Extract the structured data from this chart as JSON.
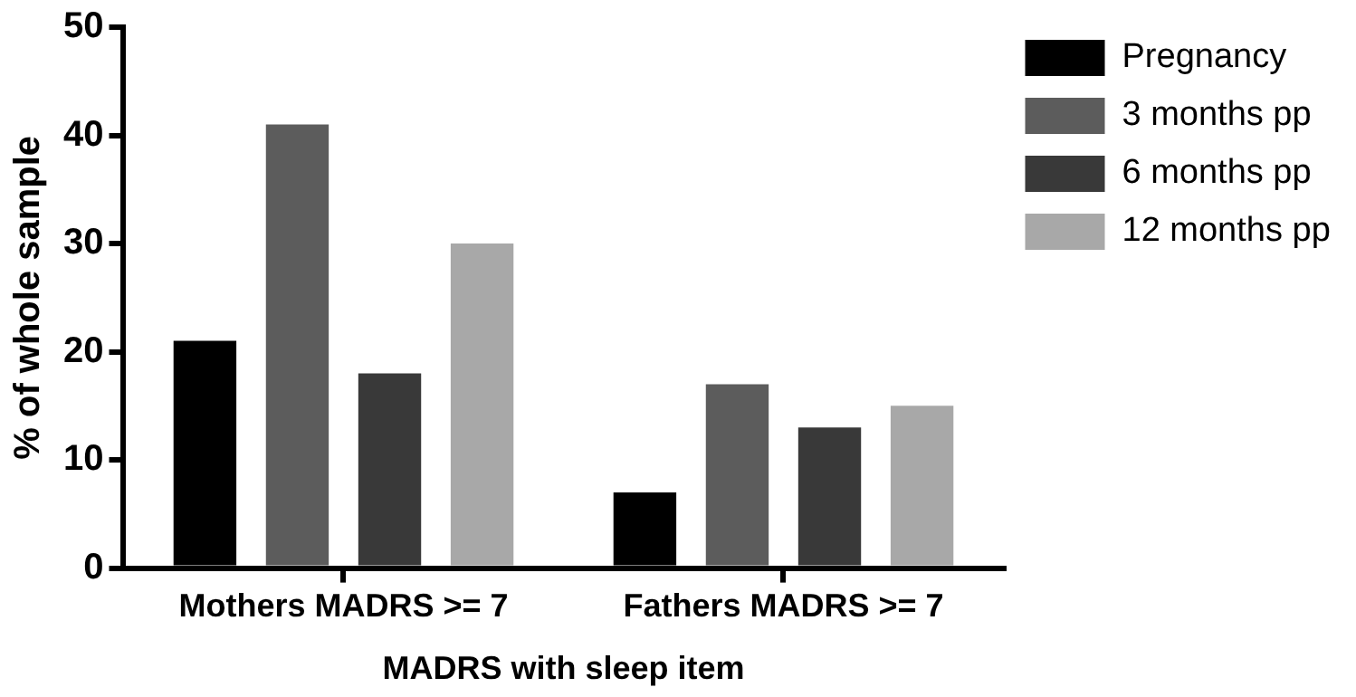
{
  "chart_data": {
    "type": "bar",
    "xlabel": "MADRS with sleep item",
    "ylabel": "% of whole sample",
    "categories": [
      "Mothers MADRS >= 7",
      "Fathers MADRS >= 7"
    ],
    "series": [
      {
        "name": "Pregnancy",
        "color": "#000000",
        "values": [
          21,
          7
        ]
      },
      {
        "name": "3 months pp",
        "color": "#5c5c5c",
        "values": [
          41,
          17
        ]
      },
      {
        "name": "6 months pp",
        "color": "#393939",
        "values": [
          18,
          13
        ]
      },
      {
        "name": "12 months pp",
        "color": "#a8a8a8",
        "values": [
          30,
          15
        ]
      }
    ],
    "ylim": [
      0,
      50
    ],
    "yticks": [
      0,
      10,
      20,
      30,
      40,
      50
    ],
    "grid": false,
    "legend": "right"
  }
}
